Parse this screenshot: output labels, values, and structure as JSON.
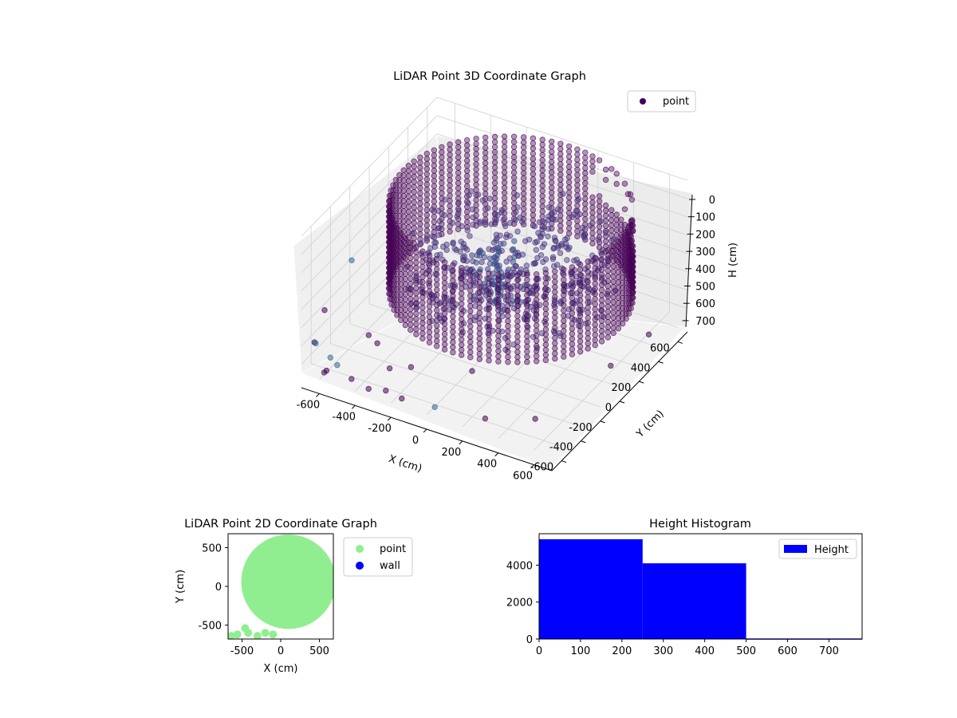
{
  "chart_data": [
    {
      "type": "scatter",
      "projection": "3d",
      "title": "LiDAR Point 3D Coordinate Graph",
      "xlabel": "X (cm)",
      "ylabel": "Y (cm)",
      "zlabel": "H (cm)",
      "xlim": [
        -700,
        700
      ],
      "ylim": [
        -700,
        700
      ],
      "zlim": [
        0,
        750
      ],
      "z_inverted": true,
      "xticks": [
        -600,
        -400,
        -200,
        0,
        200,
        400,
        600
      ],
      "yticks": [
        -600,
        -400,
        -200,
        0,
        200,
        400,
        600
      ],
      "zticks": [
        0,
        100,
        200,
        300,
        400,
        500,
        600,
        700
      ],
      "grid": true,
      "legend": {
        "position": "top-right",
        "entries": [
          "point"
        ]
      },
      "series": [
        {
          "name": "point",
          "color": "#440154",
          "colormap": "viridis",
          "marker": "circle",
          "alpha": 0.45,
          "shape": "cylindrical wall of points, radius about 600 cm, heights 0 to 500 cm, with scattered interior and outlying points",
          "points_sample": [
            {
              "x": -690,
              "y": -200,
              "h": 400
            },
            {
              "x": -600,
              "y": -650,
              "h": 740
            },
            {
              "x": -500,
              "y": -700,
              "h": 690
            },
            {
              "x": -250,
              "y": -660,
              "h": 720
            },
            {
              "x": 650,
              "y": 0,
              "h": 650
            },
            {
              "x": 300,
              "y": -650,
              "h": 700
            }
          ]
        }
      ]
    },
    {
      "type": "scatter",
      "title": "LiDAR Point 2D Coordinate Graph",
      "xlabel": "X (cm)",
      "ylabel": "Y (cm)",
      "xlim": [
        -680,
        680
      ],
      "ylim": [
        -680,
        680
      ],
      "xticks": [
        -500,
        0,
        500
      ],
      "yticks": [
        -500,
        0,
        500
      ],
      "legend": {
        "position": "outside-right",
        "entries": [
          "point",
          "wall"
        ]
      },
      "series": [
        {
          "name": "point",
          "color": "#90ee90",
          "shape": "filled disc centred near (100, 50), radius about 600 cm"
        },
        {
          "name": "wall",
          "color": "#0000ff",
          "points": []
        }
      ]
    },
    {
      "type": "histogram",
      "title": "Height Histogram",
      "xlabel": "",
      "ylabel": "",
      "xlim": [
        0,
        780
      ],
      "ylim": [
        0,
        5700
      ],
      "xticks": [
        0,
        100,
        200,
        300,
        400,
        500,
        600,
        700
      ],
      "yticks": [
        0,
        2000,
        4000
      ],
      "legend": {
        "position": "top-right",
        "entries": [
          "Height"
        ]
      },
      "series": [
        {
          "name": "Height",
          "color": "#0000ff",
          "bins": [
            0,
            250,
            500,
            780
          ],
          "counts": [
            5400,
            4100,
            30
          ]
        }
      ]
    }
  ]
}
